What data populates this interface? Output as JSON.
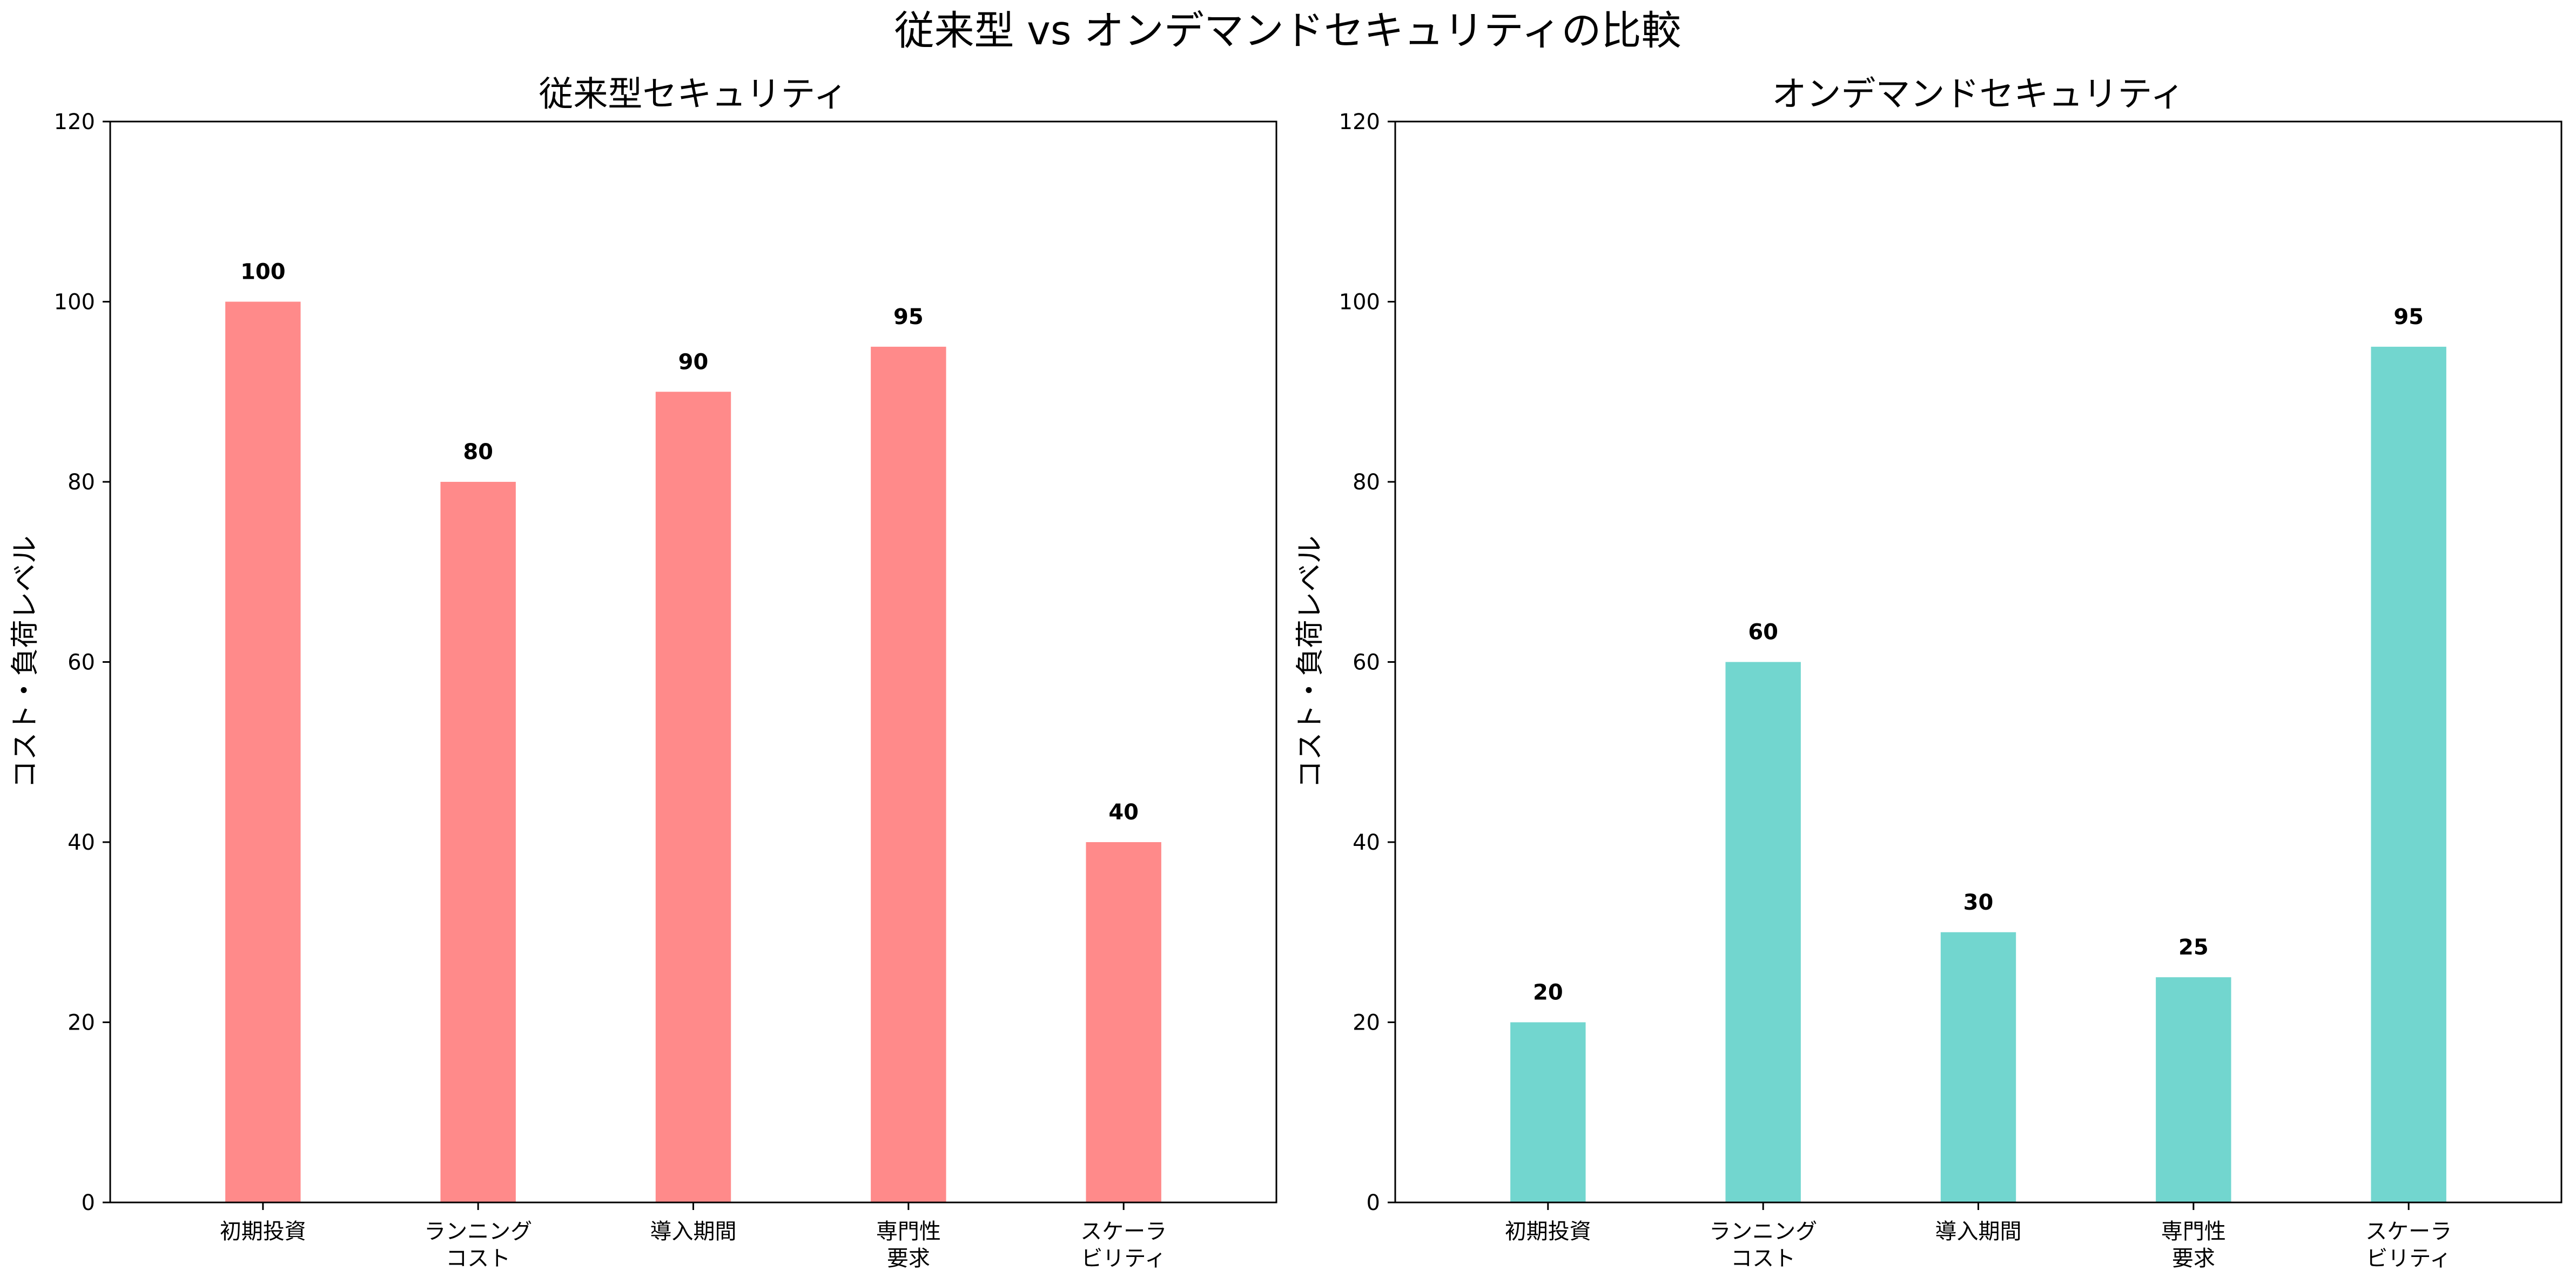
{
  "figure": {
    "title": "従来型 vs オンデマンドセキュリティの比較"
  },
  "chart_data": [
    {
      "type": "bar",
      "title": "従来型セキュリティ",
      "xlabel": "",
      "ylabel": "コスト・負荷レベル",
      "categories": [
        [
          "初期投資"
        ],
        [
          "ランニング",
          "コスト"
        ],
        [
          "導入期間"
        ],
        [
          "専門性",
          "要求"
        ],
        [
          "スケーラ",
          "ビリティ"
        ]
      ],
      "values": [
        100,
        80,
        90,
        95,
        40
      ],
      "ylim": [
        0,
        120
      ],
      "yticks": [
        0,
        20,
        40,
        60,
        80,
        100,
        120
      ],
      "color": "#ff8a8a",
      "grid": false,
      "show_value_labels": true
    },
    {
      "type": "bar",
      "title": "オンデマンドセキュリティ",
      "xlabel": "",
      "ylabel": "コスト・負荷レベル",
      "categories": [
        [
          "初期投資"
        ],
        [
          "ランニング",
          "コスト"
        ],
        [
          "導入期間"
        ],
        [
          "専門性",
          "要求"
        ],
        [
          "スケーラ",
          "ビリティ"
        ]
      ],
      "values": [
        20,
        60,
        30,
        25,
        95
      ],
      "ylim": [
        0,
        120
      ],
      "yticks": [
        0,
        20,
        40,
        60,
        80,
        100,
        120
      ],
      "color": "#72d6cf",
      "grid": false,
      "show_value_labels": true
    }
  ]
}
